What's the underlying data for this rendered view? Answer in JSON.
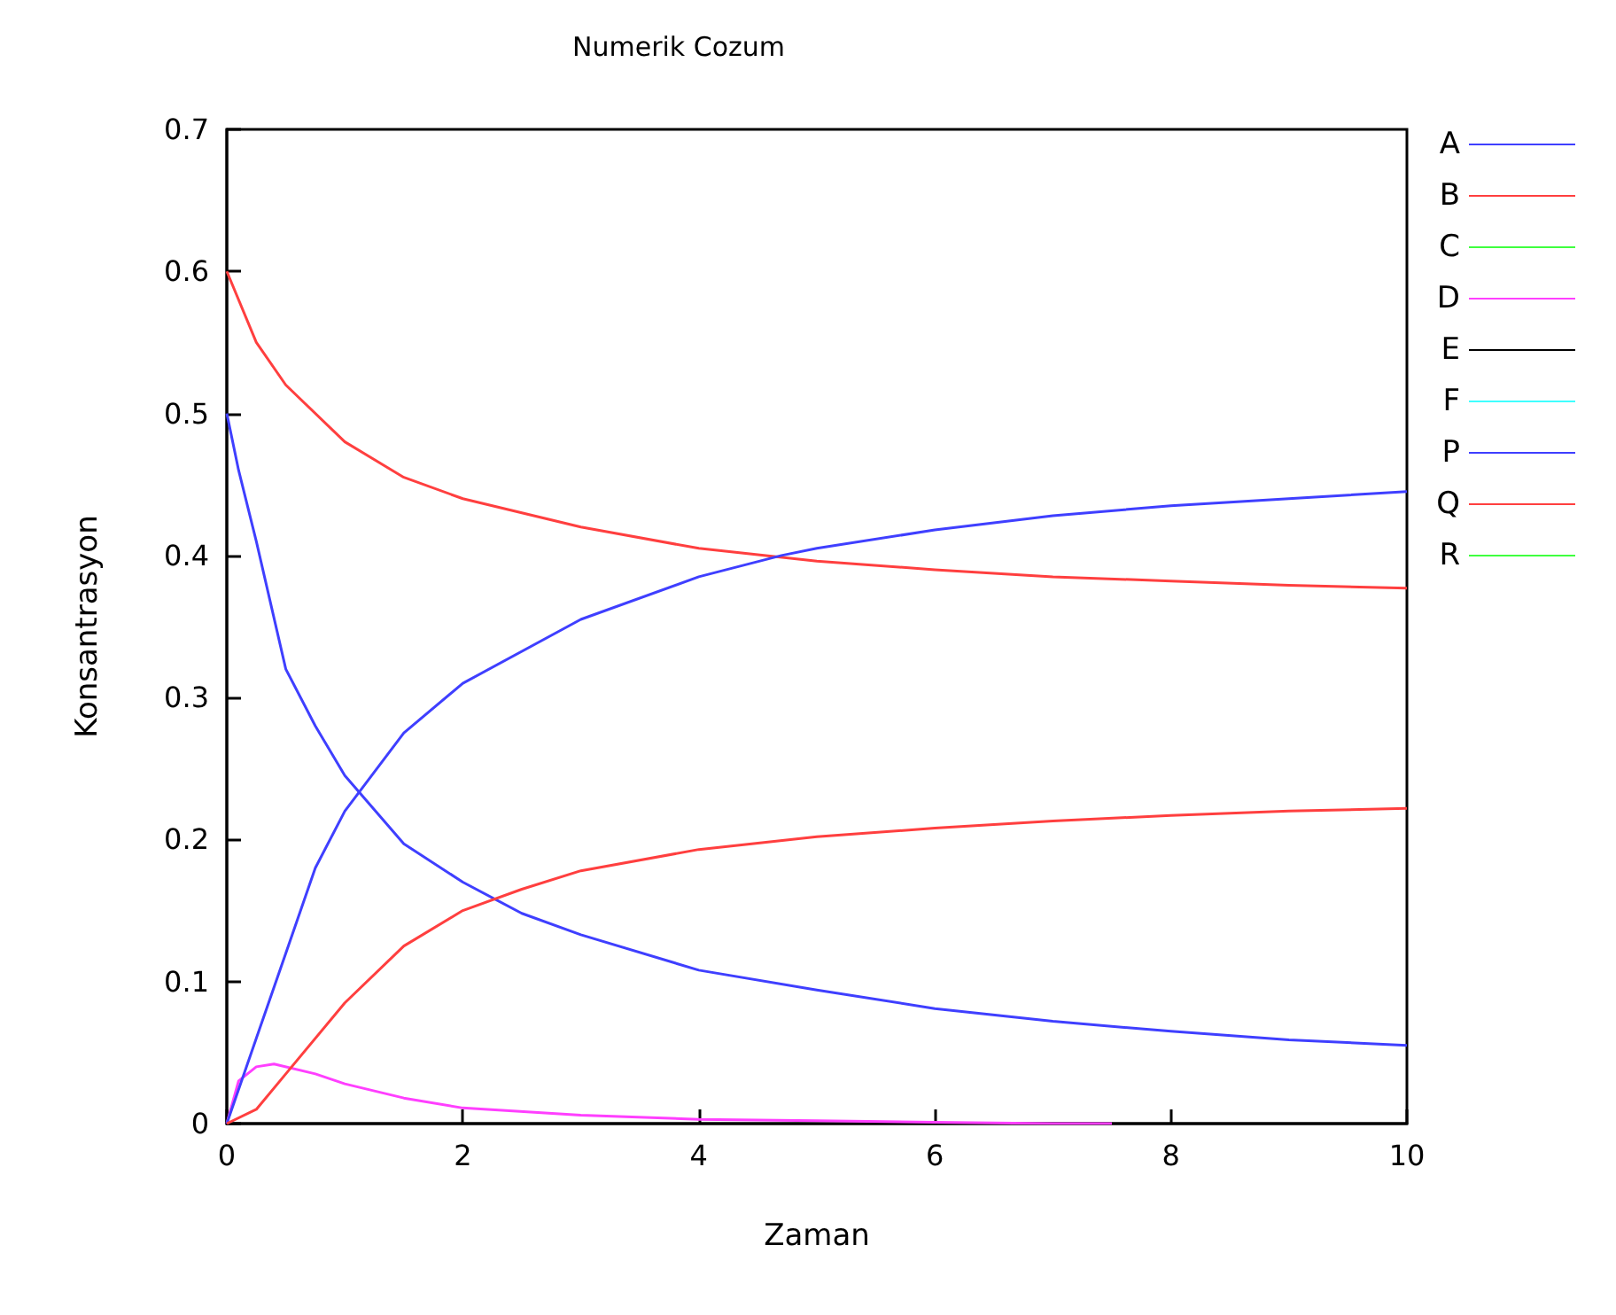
{
  "chart_data": {
    "type": "line",
    "title": "Numerik Cozum",
    "xlabel": "Zaman",
    "ylabel": "Konsantrasyon",
    "xlim": [
      0,
      10
    ],
    "xticks": [
      0,
      2,
      4,
      6,
      8,
      10
    ],
    "ylim": [
      0,
      0.7
    ],
    "yticks": [
      0,
      0.1,
      0.2,
      0.3,
      0.4,
      0.5,
      0.6,
      0.7
    ],
    "grid": false,
    "legend": "right",
    "marker": "none",
    "line_style": "solid",
    "series": [
      {
        "name": "A",
        "color": "#3f3fff",
        "x": [
          0,
          0.1,
          0.25,
          0.5,
          0.75,
          1,
          1.5,
          2,
          2.5,
          3,
          4,
          5,
          6,
          7,
          8,
          9,
          10
        ],
        "values": [
          0.5,
          0.46,
          0.41,
          0.32,
          0.28,
          0.245,
          0.197,
          0.17,
          0.148,
          0.133,
          0.108,
          0.094,
          0.081,
          0.072,
          0.065,
          0.059,
          0.055
        ]
      },
      {
        "name": "B",
        "color": "#ff3f3f",
        "x": [
          0,
          0.25,
          0.5,
          1,
          1.5,
          2,
          3,
          4,
          5,
          6,
          7,
          8,
          9,
          10
        ],
        "values": [
          0.6,
          0.55,
          0.52,
          0.48,
          0.455,
          0.44,
          0.42,
          0.405,
          0.396,
          0.39,
          0.385,
          0.382,
          0.379,
          0.377
        ]
      },
      {
        "name": "C",
        "color": "#3fff3f"
      },
      {
        "name": "D",
        "color": "#ff3fff",
        "x": [
          0,
          0.1,
          0.25,
          0.4,
          0.75,
          1,
          1.5,
          2,
          3,
          4,
          5,
          6,
          7,
          7.5
        ],
        "values": [
          0,
          0.03,
          0.04,
          0.042,
          0.035,
          0.028,
          0.018,
          0.011,
          0.006,
          0.003,
          0.002,
          0.001,
          0,
          0
        ]
      },
      {
        "name": "E",
        "color": "#000000"
      },
      {
        "name": "F",
        "color": "#3fffff"
      },
      {
        "name": "P",
        "color": "#3f3fff",
        "x": [
          0,
          0.25,
          0.5,
          0.75,
          1,
          1.5,
          2,
          3,
          4,
          4.7,
          5,
          6,
          7,
          8,
          9,
          10
        ],
        "values": [
          0,
          0.06,
          0.12,
          0.18,
          0.22,
          0.275,
          0.31,
          0.355,
          0.385,
          0.4,
          0.405,
          0.418,
          0.428,
          0.435,
          0.44,
          0.445
        ]
      },
      {
        "name": "Q",
        "color": "#ff3f3f",
        "x": [
          0,
          0.25,
          0.5,
          1,
          1.5,
          2,
          2.5,
          3,
          4,
          5,
          6,
          7,
          8,
          9,
          10
        ],
        "values": [
          0,
          0.01,
          0.035,
          0.085,
          0.125,
          0.15,
          0.165,
          0.178,
          0.193,
          0.202,
          0.208,
          0.213,
          0.217,
          0.22,
          0.222
        ]
      },
      {
        "name": "R",
        "color": "#3fff3f"
      }
    ]
  }
}
